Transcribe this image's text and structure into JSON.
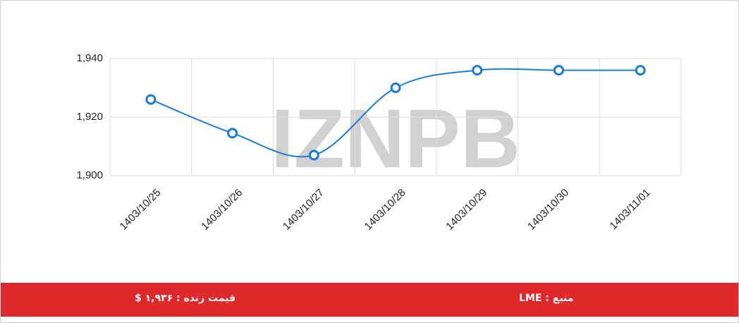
{
  "chart_data": {
    "type": "line",
    "categories": [
      "1403/10/25",
      "1403/10/26",
      "1403/10/27",
      "1403/10/28",
      "1403/10/29",
      "1403/10/30",
      "1403/11/01"
    ],
    "series": [
      {
        "color": "#1a7ad4",
        "values": [
          1926,
          1914.5,
          1907,
          1930,
          1936,
          1936,
          1936
        ]
      }
    ],
    "ylim": [
      1900,
      1940
    ],
    "yticks": [
      {
        "value": 1900,
        "label": "1,900"
      },
      {
        "value": 1920,
        "label": "1,920"
      },
      {
        "value": 1940,
        "label": "1,940"
      }
    ],
    "grid": true
  },
  "watermark": "IZNPB",
  "footer": {
    "source": "منبع : LME",
    "live_price": "قیمت زنده : ۱,۹۳۶ $"
  }
}
